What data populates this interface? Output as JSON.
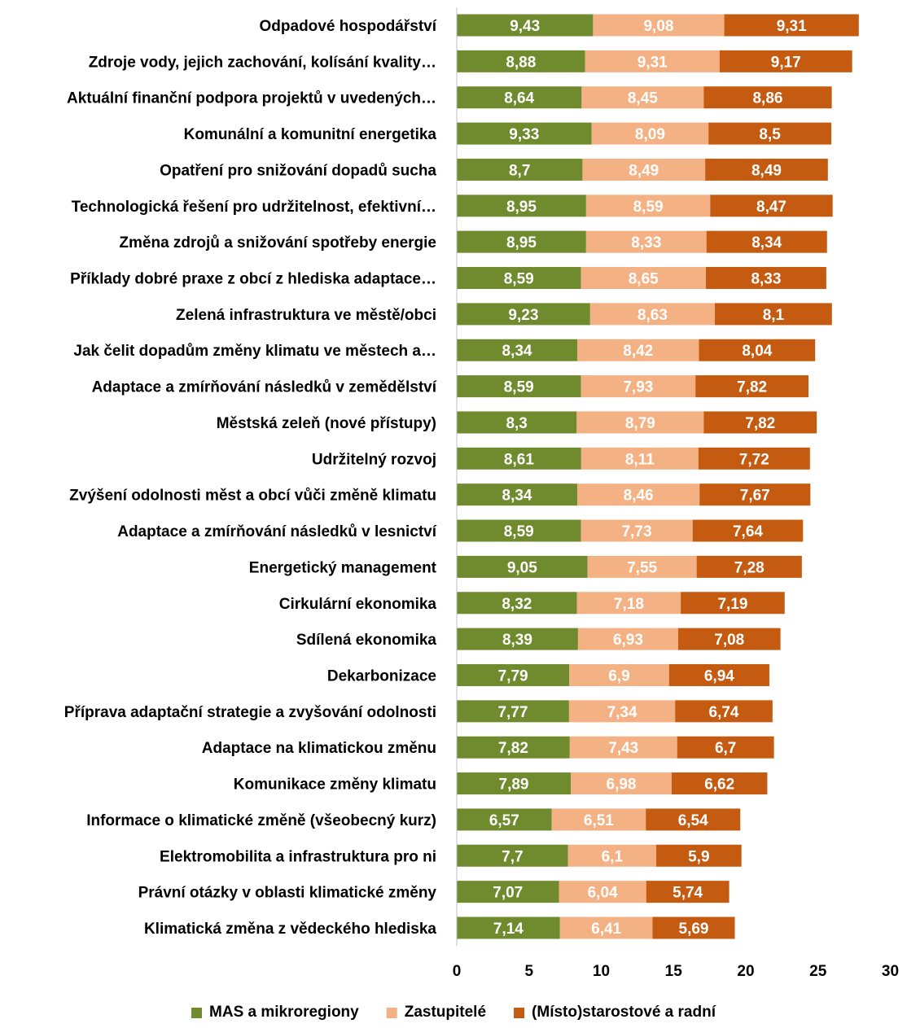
{
  "chart_data": {
    "type": "bar",
    "orientation": "horizontal",
    "stacked": true,
    "categories": [
      "Odpadové hospodářství",
      "Zdroje vody, jejich zachování, kolísání kvality…",
      "Aktuální finanční podpora projektů v uvedených…",
      "Komunální a komunitní energetika",
      "Opatření pro snižování dopadů sucha",
      "Technologická řešení pro udržitelnost, efektivní…",
      "Změna zdrojů a snižování spotřeby energie",
      "Příklady dobré praxe z obcí z hlediska adaptace…",
      "Zelená infrastruktura ve městě/obci",
      "Jak čelit dopadům změny klimatu ve městech a…",
      "Adaptace a zmírňování následků v zemědělství",
      "Městská zeleň (nové přístupy)",
      "Udržitelný rozvoj",
      "Zvýšení odolnosti měst a obcí vůči změně klimatu",
      "Adaptace a zmírňování následků v lesnictví",
      "Energetický management",
      "Cirkulární ekonomika",
      "Sdílená ekonomika",
      "Dekarbonizace",
      "Příprava adaptační strategie a zvyšování odolnosti",
      "Adaptace na klimatickou změnu",
      "Komunikace změny klimatu",
      "Informace o klimatické změně (všeobecný kurz)",
      "Elektromobilita a infrastruktura pro ni",
      "Právní otázky v oblasti klimatické změny",
      "Klimatická změna z vědeckého hlediska"
    ],
    "series": [
      {
        "name": "MAS a mikroregiony",
        "color": "#6f8b2e",
        "values": [
          9.43,
          8.88,
          8.64,
          9.33,
          8.7,
          8.95,
          8.95,
          8.59,
          9.23,
          8.34,
          8.59,
          8.3,
          8.61,
          8.34,
          8.59,
          9.05,
          8.32,
          8.39,
          7.79,
          7.77,
          7.82,
          7.89,
          6.57,
          7.7,
          7.07,
          7.14
        ],
        "labels": [
          "9,43",
          "8,88",
          "8,64",
          "9,33",
          "8,7",
          "8,95",
          "8,95",
          "8,59",
          "9,23",
          "8,34",
          "8,59",
          "8,3",
          "8,61",
          "8,34",
          "8,59",
          "9,05",
          "8,32",
          "8,39",
          "7,79",
          "7,77",
          "7,82",
          "7,89",
          "6,57",
          "7,7",
          "7,07",
          "7,14"
        ]
      },
      {
        "name": "Zastupitelé",
        "color": "#f4b183",
        "values": [
          9.08,
          9.31,
          8.45,
          8.09,
          8.49,
          8.59,
          8.33,
          8.65,
          8.63,
          8.42,
          7.93,
          8.79,
          8.11,
          8.46,
          7.73,
          7.55,
          7.18,
          6.93,
          6.9,
          7.34,
          7.43,
          6.98,
          6.51,
          6.1,
          6.04,
          6.41
        ],
        "labels": [
          "9,08",
          "9,31",
          "8,45",
          "8,09",
          "8,49",
          "8,59",
          "8,33",
          "8,65",
          "8,63",
          "8,42",
          "7,93",
          "8,79",
          "8,11",
          "8,46",
          "7,73",
          "7,55",
          "7,18",
          "6,93",
          "6,9",
          "7,34",
          "7,43",
          "6,98",
          "6,51",
          "6,1",
          "6,04",
          "6,41"
        ]
      },
      {
        "name": "(Místo)starostové a radní",
        "color": "#c55a11",
        "values": [
          9.31,
          9.17,
          8.86,
          8.5,
          8.49,
          8.47,
          8.34,
          8.33,
          8.1,
          8.04,
          7.82,
          7.82,
          7.72,
          7.67,
          7.64,
          7.28,
          7.19,
          7.08,
          6.94,
          6.74,
          6.7,
          6.62,
          6.54,
          5.9,
          5.74,
          5.69
        ],
        "labels": [
          "9,31",
          "9,17",
          "8,86",
          "8,5",
          "8,49",
          "8,47",
          "8,34",
          "8,33",
          "8,1",
          "8,04",
          "7,82",
          "7,82",
          "7,72",
          "7,67",
          "7,64",
          "7,28",
          "7,19",
          "7,08",
          "6,94",
          "6,74",
          "6,7",
          "6,62",
          "6,54",
          "5,9",
          "5,74",
          "5,69"
        ]
      }
    ],
    "xlim": [
      0,
      30
    ],
    "xticks": [
      0,
      5,
      10,
      15,
      20,
      25,
      30
    ],
    "title": "",
    "xlabel": "",
    "ylabel": "",
    "grid": false,
    "legend_position": "bottom",
    "value_label_color": "#ffffff"
  }
}
